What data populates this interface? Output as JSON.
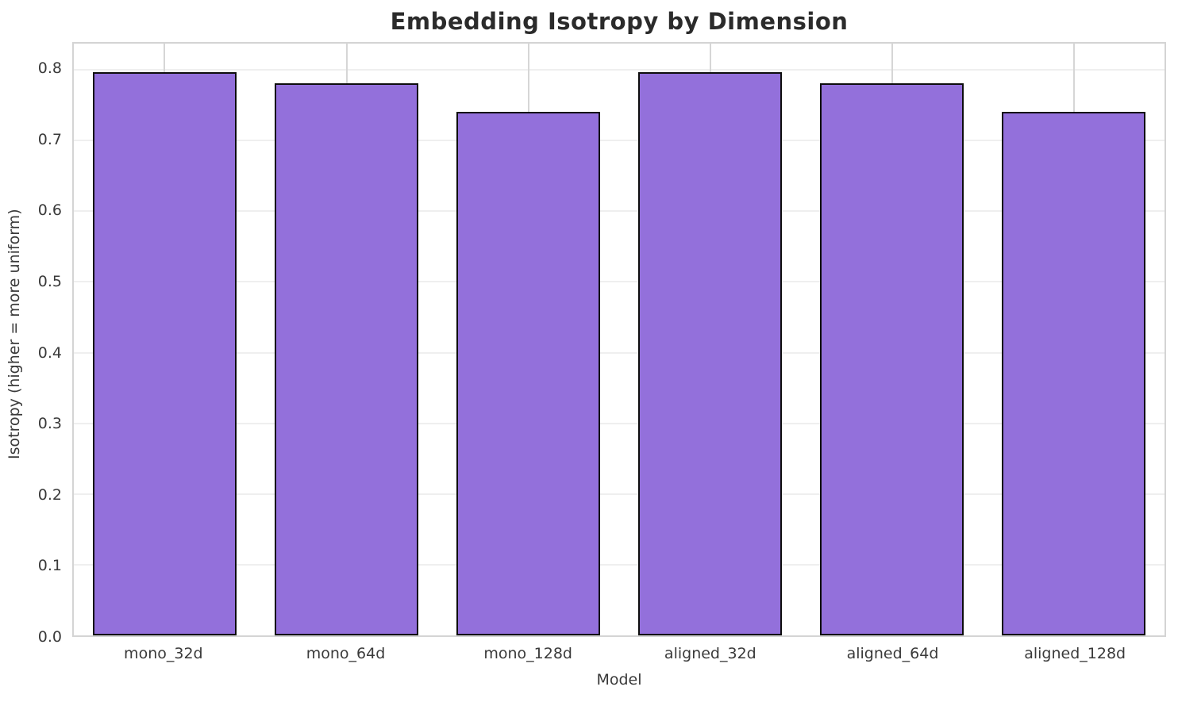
{
  "chart_data": {
    "type": "bar",
    "title": "Embedding Isotropy by Dimension",
    "xlabel": "Model",
    "ylabel": "Isotropy (higher = more uniform)",
    "categories": [
      "mono_32d",
      "mono_64d",
      "mono_128d",
      "aligned_32d",
      "aligned_64d",
      "aligned_128d"
    ],
    "values": [
      0.797,
      0.781,
      0.741,
      0.797,
      0.781,
      0.741
    ],
    "ytick_labels": [
      "0.0",
      "0.1",
      "0.2",
      "0.3",
      "0.4",
      "0.5",
      "0.6",
      "0.7",
      "0.8"
    ],
    "yticks": [
      0.0,
      0.1,
      0.2,
      0.3,
      0.4,
      0.5,
      0.6,
      0.7,
      0.8
    ],
    "ylim": [
      0,
      0.837
    ],
    "grid": true,
    "legend": "none",
    "bar_color": "#9370db",
    "bar_edge_color": "#0d0d0d",
    "title_color": "#2b2b2b",
    "tick_color": "#3a3a3a"
  }
}
